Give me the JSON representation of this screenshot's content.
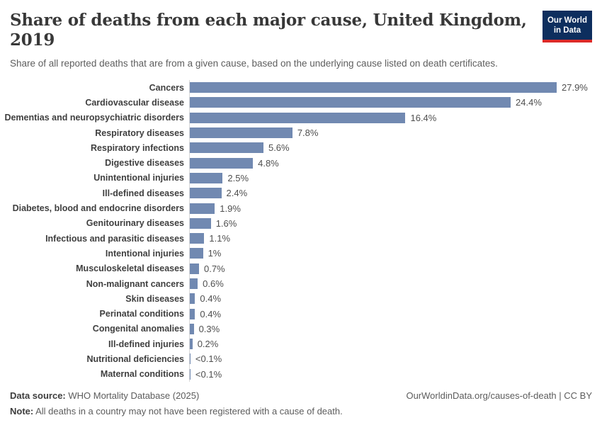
{
  "header": {
    "title": "Share of deaths from each major cause, United Kingdom, 2019",
    "subtitle": "Share of all reported deaths that are from a given cause, based on the underlying cause listed on death certificates.",
    "logo": {
      "line1": "Our World",
      "line2": "in Data",
      "bg_color": "#0d2e5e",
      "stripe_color": "#dc2a28",
      "text_color": "#ffffff"
    }
  },
  "chart_data": {
    "type": "bar",
    "orientation": "horizontal",
    "title": "Share of deaths from each major cause, United Kingdom, 2019",
    "xlabel": "",
    "ylabel": "",
    "unit": "%",
    "xlim": [
      0,
      28
    ],
    "grid": false,
    "legend": false,
    "bar_color": "#7189b1",
    "axis_line_color": "#d9d9d9",
    "categories": [
      "Cancers",
      "Cardiovascular disease",
      "Dementias and neuropsychiatric disorders",
      "Respiratory diseases",
      "Respiratory infections",
      "Digestive diseases",
      "Unintentional injuries",
      "Ill-defined diseases",
      "Diabetes, blood and endocrine disorders",
      "Genitourinary diseases",
      "Infectious and parasitic diseases",
      "Intentional injuries",
      "Musculoskeletal diseases",
      "Non-malignant cancers",
      "Skin diseases",
      "Perinatal conditions",
      "Congenital anomalies",
      "Ill-defined injuries",
      "Nutritional deficiencies",
      "Maternal conditions"
    ],
    "values": [
      27.9,
      24.4,
      16.4,
      7.8,
      5.6,
      4.8,
      2.5,
      2.4,
      1.9,
      1.6,
      1.1,
      1,
      0.7,
      0.6,
      0.4,
      0.4,
      0.3,
      0.2,
      0.05,
      0.05
    ],
    "value_labels": [
      "27.9%",
      "24.4%",
      "16.4%",
      "7.8%",
      "5.6%",
      "4.8%",
      "2.5%",
      "2.4%",
      "1.9%",
      "1.6%",
      "1.1%",
      "1%",
      "0.7%",
      "0.6%",
      "0.4%",
      "0.4%",
      "0.3%",
      "0.2%",
      "<0.1%",
      "<0.1%"
    ]
  },
  "footer": {
    "source_label": "Data source:",
    "source_text": " WHO Mortality Database (2025)",
    "credit": "OurWorldinData.org/causes-of-death | CC BY",
    "note_label": "Note:",
    "note_text": " All deaths in a country may not have been registered with a cause of death."
  }
}
